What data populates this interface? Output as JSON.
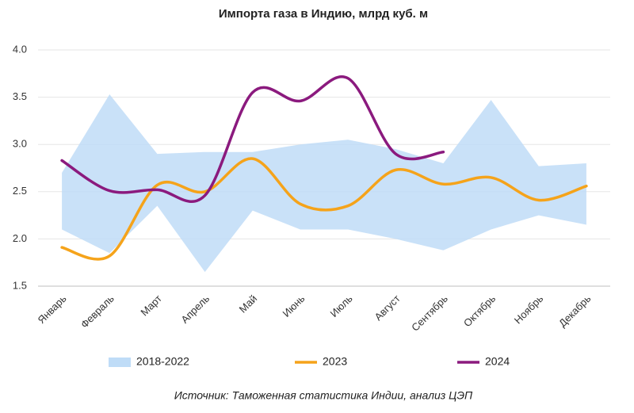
{
  "chart_data": {
    "type": "line",
    "title": "Импорта газа в Индию, млрд куб. м",
    "source": "Источник: Таможенная статистика Индии, анализ ЦЭП",
    "categories": [
      "Январь",
      "Февраль",
      "Март",
      "Апрель",
      "Май",
      "Июнь",
      "Июль",
      "Август",
      "Сентябрь",
      "Октябрь",
      "Ноябрь",
      "Декабрь"
    ],
    "ylim": [
      1.5,
      4.0
    ],
    "yticks": [
      {
        "value": 1.5,
        "label": "1.5"
      },
      {
        "value": 2.0,
        "label": "2.0"
      },
      {
        "value": 2.5,
        "label": "2.5"
      },
      {
        "value": 3.0,
        "label": "3.0"
      },
      {
        "value": 3.5,
        "label": "3.5"
      },
      {
        "value": 4.0,
        "label": "4.0"
      }
    ],
    "grid": true,
    "series": [
      {
        "name": "2018-2022",
        "color": "#bfdcf7",
        "type": "band",
        "low": [
          2.1,
          1.85,
          2.35,
          1.65,
          2.3,
          2.1,
          2.1,
          2.0,
          1.88,
          2.1,
          2.25,
          2.15
        ],
        "high": [
          2.7,
          3.53,
          2.9,
          2.92,
          2.92,
          3.0,
          3.05,
          2.95,
          2.8,
          3.47,
          2.77,
          2.8
        ]
      },
      {
        "name": "2023",
        "color": "#f5a31a",
        "type": "line",
        "values": [
          1.91,
          1.82,
          2.57,
          2.5,
          2.85,
          2.37,
          2.35,
          2.73,
          2.58,
          2.65,
          2.41,
          2.56
        ]
      },
      {
        "name": "2024",
        "color": "#8b1a7e",
        "type": "line",
        "values": [
          2.83,
          2.51,
          2.52,
          2.46,
          3.55,
          3.46,
          3.7,
          2.9,
          2.92,
          null,
          null,
          null
        ]
      }
    ]
  }
}
